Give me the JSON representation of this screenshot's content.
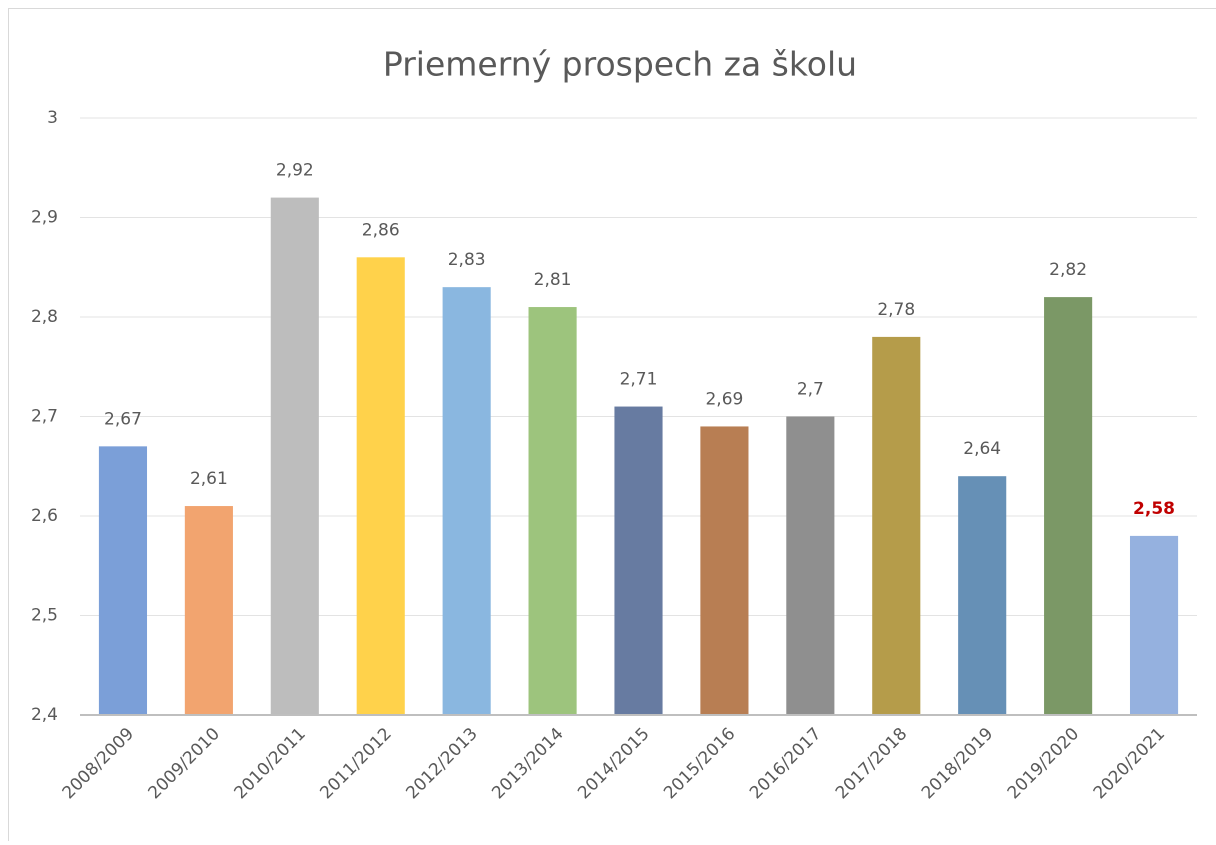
{
  "chart_data": {
    "type": "bar",
    "title": "Priemerný prospech za školu",
    "categories": [
      "2008/2009",
      "2009/2010",
      "2010/2011",
      "2011/2012",
      "2012/2013",
      "2013/2014",
      "2014/2015",
      "2015/2016",
      "2016/2017",
      "2017/2018",
      "2018/2019",
      "2019/2020",
      "2020/2021"
    ],
    "values": [
      2.67,
      2.61,
      2.92,
      2.86,
      2.83,
      2.81,
      2.71,
      2.69,
      2.7,
      2.78,
      2.64,
      2.82,
      2.58
    ],
    "value_labels": [
      "2,67",
      "2,61",
      "2,92",
      "2,86",
      "2,83",
      "2,81",
      "2,71",
      "2,69",
      "2,7",
      "2,78",
      "2,64",
      "2,82",
      "2,58"
    ],
    "colors": [
      "#7b9fd8",
      "#f2a46f",
      "#bdbdbd",
      "#ffd24b",
      "#8ab7e0",
      "#9dc47d",
      "#677ba1",
      "#b87e53",
      "#8f8f8f",
      "#b59c4a",
      "#6690b6",
      "#7b9866",
      "#95b1df"
    ],
    "label_colors": [
      "#595959",
      "#595959",
      "#595959",
      "#595959",
      "#595959",
      "#595959",
      "#595959",
      "#595959",
      "#595959",
      "#595959",
      "#595959",
      "#595959",
      "#c00000"
    ],
    "ylim": [
      2.4,
      3
    ],
    "yticks": [
      {
        "value": 2.4,
        "label": "2,4"
      },
      {
        "value": 2.5,
        "label": "2,5"
      },
      {
        "value": 2.6,
        "label": "2,6"
      },
      {
        "value": 2.7,
        "label": "2,7"
      },
      {
        "value": 2.8,
        "label": "2,8"
      },
      {
        "value": 2.9,
        "label": "2,9"
      },
      3
    ],
    "grid": true
  }
}
